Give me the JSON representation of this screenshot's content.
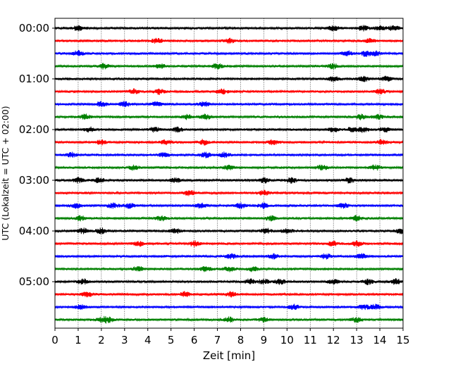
{
  "chart_data": {
    "type": "line",
    "xlabel": "Zeit  [min]",
    "ylabel": "UTC (Lokalzeit = UTC + 02:00)",
    "xlim": [
      0,
      15
    ],
    "x_ticks": [
      0,
      1,
      2,
      3,
      4,
      5,
      6,
      7,
      8,
      9,
      10,
      11,
      12,
      13,
      14,
      15
    ],
    "y_tick_labels": [
      "00:00",
      "01:00",
      "02:00",
      "03:00",
      "04:00",
      "05:00"
    ],
    "grid": "vertical dotted lines at each minute",
    "colors": [
      "#000000",
      "#ff0000",
      "#0000ff",
      "#008000"
    ],
    "traces": [
      {
        "start": "00:00",
        "color": "#000000",
        "burst_minutes": [
          1.0,
          12.0,
          13.3,
          14.0,
          14.6
        ]
      },
      {
        "start": "00:15",
        "color": "#ff0000",
        "burst_minutes": [
          4.4,
          7.5,
          13.6
        ]
      },
      {
        "start": "00:30",
        "color": "#0000ff",
        "burst_minutes": [
          1.0,
          12.6,
          13.4,
          13.8
        ]
      },
      {
        "start": "00:45",
        "color": "#008000",
        "burst_minutes": [
          2.1,
          4.5,
          7.0,
          12.0
        ]
      },
      {
        "start": "01:00",
        "color": "#000000",
        "burst_minutes": [
          12.0,
          13.3,
          14.3
        ]
      },
      {
        "start": "01:15",
        "color": "#ff0000",
        "burst_minutes": [
          3.4,
          4.5,
          7.2,
          14.0
        ]
      },
      {
        "start": "01:30",
        "color": "#0000ff",
        "burst_minutes": [
          2.0,
          3.0,
          4.4,
          6.4
        ]
      },
      {
        "start": "01:45",
        "color": "#008000",
        "burst_minutes": [
          1.3,
          5.7,
          6.5,
          13.2,
          13.9
        ]
      },
      {
        "start": "02:00",
        "color": "#000000",
        "burst_minutes": [
          1.5,
          4.3,
          5.3,
          12.0,
          12.8,
          13.3,
          14.2
        ]
      },
      {
        "start": "02:15",
        "color": "#ff0000",
        "burst_minutes": [
          2.0,
          4.8,
          6.4,
          9.4,
          14.1
        ]
      },
      {
        "start": "02:30",
        "color": "#0000ff",
        "burst_minutes": [
          0.7,
          4.7,
          6.5,
          7.3
        ]
      },
      {
        "start": "02:45",
        "color": "#008000",
        "burst_minutes": [
          3.4,
          7.5,
          11.5,
          13.8
        ]
      },
      {
        "start": "03:00",
        "color": "#000000",
        "burst_minutes": [
          1.0,
          1.9,
          5.2,
          9.0,
          10.2,
          12.7
        ]
      },
      {
        "start": "03:15",
        "color": "#ff0000",
        "burst_minutes": [
          5.8,
          9.0
        ]
      },
      {
        "start": "03:30",
        "color": "#0000ff",
        "burst_minutes": [
          0.9,
          2.5,
          3.2,
          6.3,
          8.0,
          9.0,
          12.4
        ]
      },
      {
        "start": "03:45",
        "color": "#008000",
        "burst_minutes": [
          1.1,
          4.6,
          9.3,
          13.0
        ]
      },
      {
        "start": "04:00",
        "color": "#000000",
        "burst_minutes": [
          1.2,
          2.0,
          5.2,
          9.1,
          10.0,
          14.9
        ]
      },
      {
        "start": "04:15",
        "color": "#ff0000",
        "burst_minutes": [
          3.6,
          6.0,
          12.0,
          13.0
        ]
      },
      {
        "start": "04:30",
        "color": "#0000ff",
        "burst_minutes": [
          7.6,
          9.4,
          11.7,
          13.2
        ]
      },
      {
        "start": "04:45",
        "color": "#008000",
        "burst_minutes": [
          3.6,
          6.5,
          7.5,
          8.5
        ]
      },
      {
        "start": "05:00",
        "color": "#000000",
        "burst_minutes": [
          1.2,
          8.4,
          9.0,
          9.7,
          12.0,
          13.5,
          14.7
        ]
      },
      {
        "start": "05:15",
        "color": "#ff0000",
        "burst_minutes": [
          1.4,
          5.6,
          7.6
        ]
      },
      {
        "start": "05:30",
        "color": "#0000ff",
        "burst_minutes": [
          1.1,
          10.3,
          13.3,
          13.8
        ]
      },
      {
        "start": "05:45",
        "color": "#008000",
        "burst_minutes": [
          2.0,
          2.3,
          7.5,
          9.0,
          13.0
        ]
      }
    ]
  }
}
